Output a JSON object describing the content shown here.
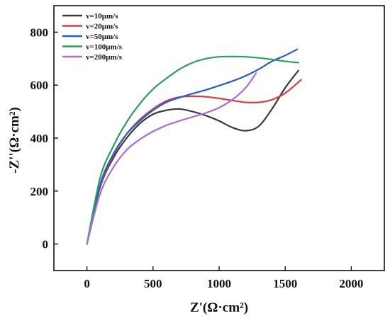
{
  "chart_data": {
    "type": "line",
    "title": "",
    "xlabel": "Z'(Ω·cm²)",
    "ylabel": "-Z''(Ω·cm²)",
    "xlim": [
      -250,
      2250
    ],
    "ylim": [
      -100,
      900
    ],
    "xticks": [
      0,
      500,
      1000,
      1500,
      2000
    ],
    "yticks": [
      0,
      200,
      400,
      600,
      800
    ],
    "grid": false,
    "legend_position": "top-left",
    "series": [
      {
        "name": "v=10μm/s",
        "color": "#3a3a3a",
        "x": [
          0,
          100,
          200,
          300,
          400,
          500,
          600,
          700,
          800,
          900,
          1000,
          1100,
          1200,
          1300,
          1400,
          1500,
          1600
        ],
        "y": [
          0,
          215,
          325,
          400,
          455,
          490,
          505,
          510,
          500,
          485,
          465,
          440,
          428,
          445,
          510,
          590,
          655
        ]
      },
      {
        "name": "v=20μm/s",
        "color": "#e03a3a",
        "x": [
          0,
          100,
          200,
          300,
          400,
          500,
          600,
          700,
          800,
          900,
          1000,
          1100,
          1200,
          1300,
          1400,
          1500,
          1620
        ],
        "y": [
          0,
          220,
          335,
          415,
          470,
          510,
          540,
          555,
          558,
          556,
          550,
          542,
          535,
          535,
          545,
          570,
          620
        ]
      },
      {
        "name": "v=50μm/s",
        "color": "#1f5fd6",
        "x": [
          0,
          100,
          200,
          300,
          400,
          500,
          600,
          700,
          800,
          900,
          1000,
          1100,
          1200,
          1300,
          1400,
          1500,
          1590
        ],
        "y": [
          0,
          225,
          340,
          415,
          465,
          505,
          535,
          553,
          568,
          582,
          598,
          615,
          635,
          660,
          690,
          712,
          735
        ]
      },
      {
        "name": "v=100μm/s",
        "color": "#2aa05a",
        "x": [
          0,
          100,
          200,
          300,
          400,
          500,
          600,
          700,
          800,
          900,
          1000,
          1100,
          1200,
          1300,
          1400,
          1500,
          1600
        ],
        "y": [
          0,
          250,
          370,
          460,
          530,
          585,
          625,
          660,
          685,
          700,
          707,
          708,
          707,
          703,
          697,
          690,
          685
        ]
      },
      {
        "name": "v=200μm/s",
        "color": "#a86ee0",
        "x": [
          0,
          100,
          200,
          300,
          400,
          500,
          600,
          700,
          800,
          900,
          1000,
          1100,
          1200,
          1280
        ],
        "y": [
          0,
          190,
          290,
          355,
          395,
          425,
          448,
          465,
          480,
          495,
          515,
          545,
          590,
          645
        ]
      }
    ]
  }
}
